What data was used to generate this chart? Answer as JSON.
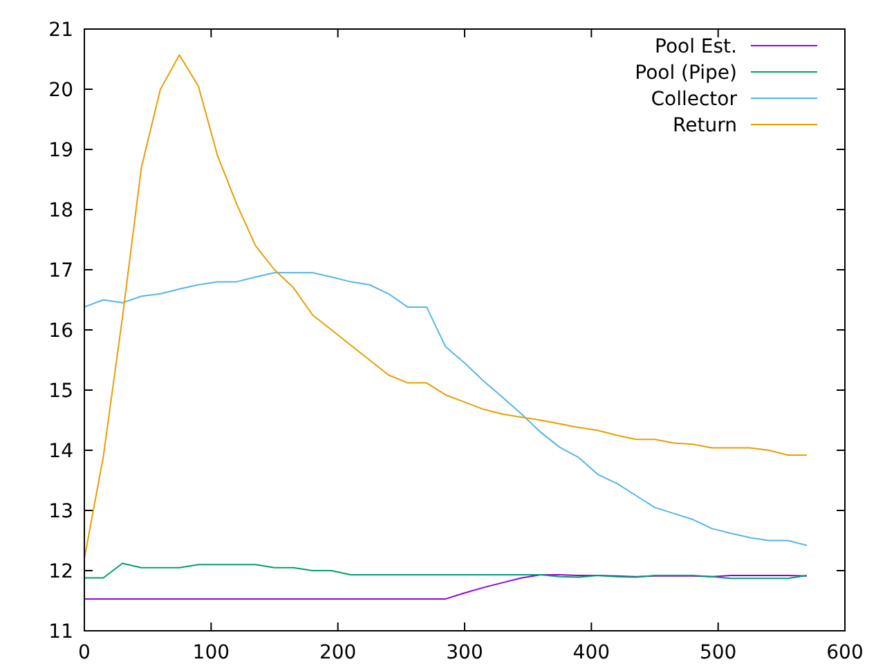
{
  "chart_data": {
    "type": "line",
    "x": [
      0,
      15,
      30,
      45,
      60,
      75,
      90,
      105,
      120,
      135,
      150,
      165,
      180,
      195,
      210,
      225,
      240,
      255,
      270,
      285,
      300,
      315,
      330,
      345,
      360,
      375,
      390,
      405,
      420,
      435,
      450,
      465,
      480,
      495,
      510,
      525,
      540,
      555,
      570
    ],
    "series": [
      {
        "name": "Pool Est.",
        "color": "#9400d3",
        "values": [
          11.53,
          11.53,
          11.53,
          11.53,
          11.53,
          11.53,
          11.53,
          11.53,
          11.53,
          11.53,
          11.53,
          11.53,
          11.53,
          11.53,
          11.53,
          11.53,
          11.53,
          11.53,
          11.53,
          11.53,
          11.63,
          11.72,
          11.8,
          11.88,
          11.93,
          11.93,
          11.92,
          11.92,
          11.91,
          11.9,
          11.91,
          11.91,
          11.91,
          11.9,
          11.92,
          11.92,
          11.92,
          11.92,
          11.91
        ]
      },
      {
        "name": "Pool (Pipe)",
        "color": "#009e73",
        "values": [
          11.88,
          11.88,
          12.12,
          12.05,
          12.05,
          12.05,
          12.1,
          12.1,
          12.1,
          12.1,
          12.05,
          12.05,
          12.0,
          12.0,
          11.93,
          11.93,
          11.93,
          11.93,
          11.93,
          11.93,
          11.93,
          11.93,
          11.93,
          11.93,
          11.93,
          11.9,
          11.89,
          11.92,
          11.9,
          11.89,
          11.92,
          11.92,
          11.92,
          11.9,
          11.87,
          11.87,
          11.87,
          11.87,
          11.92
        ]
      },
      {
        "name": "Collector",
        "color": "#56b4e9",
        "values": [
          16.38,
          16.5,
          16.45,
          16.56,
          16.6,
          16.68,
          16.75,
          16.8,
          16.8,
          16.88,
          16.95,
          16.95,
          16.95,
          16.88,
          16.8,
          16.75,
          16.6,
          16.38,
          16.38,
          15.72,
          15.45,
          15.15,
          14.88,
          14.6,
          14.3,
          14.05,
          13.88,
          13.6,
          13.45,
          13.25,
          13.05,
          12.95,
          12.85,
          12.7,
          12.62,
          12.55,
          12.5,
          12.5,
          12.42
        ]
      },
      {
        "name": "Return",
        "color": "#e69f00",
        "values": [
          12.2,
          13.9,
          16.2,
          18.7,
          20.0,
          20.57,
          20.05,
          18.9,
          18.1,
          17.4,
          17.0,
          16.7,
          16.25,
          16.0,
          15.75,
          15.5,
          15.25,
          15.12,
          15.12,
          14.92,
          14.8,
          14.68,
          14.6,
          14.55,
          14.5,
          14.44,
          14.38,
          14.33,
          14.25,
          14.18,
          14.18,
          14.12,
          14.1,
          14.04,
          14.04,
          14.04,
          14.0,
          13.92,
          13.92
        ]
      }
    ],
    "xlim": [
      0,
      600
    ],
    "xticks": [
      0,
      100,
      200,
      300,
      400,
      500,
      600
    ],
    "ylim": [
      11,
      21
    ],
    "yticks": [
      11,
      12,
      13,
      14,
      15,
      16,
      17,
      18,
      19,
      20,
      21
    ],
    "legend": "top right",
    "grid": false
  }
}
